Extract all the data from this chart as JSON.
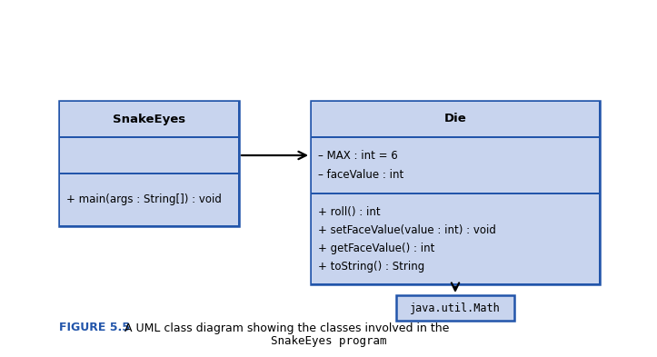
{
  "bg_color": "#ffffff",
  "border_color": "#2255aa",
  "fill_color": "#c8d4ee",
  "title_fontsize": 9.5,
  "body_fontsize": 8.5,
  "caption_fontsize": 9.0,
  "snakeeyes_title": "SnakeEyes",
  "snakeeyes_methods": [
    "+ main(args : String[]) : void"
  ],
  "die_title": "Die",
  "die_attrs": [
    "– MAX : int = 6",
    "– faceValue : int"
  ],
  "die_methods": [
    "+ roll() : int",
    "+ setFaceValue(value : int) : void",
    "+ getFaceValue() : int",
    "+ toString() : String"
  ],
  "math_label": "java.util.Math",
  "caption_bold": "FIGURE 5.5",
  "caption_regular": "  A UML class diagram showing the classes involved in the",
  "caption_line2": "SnakeEyes program"
}
